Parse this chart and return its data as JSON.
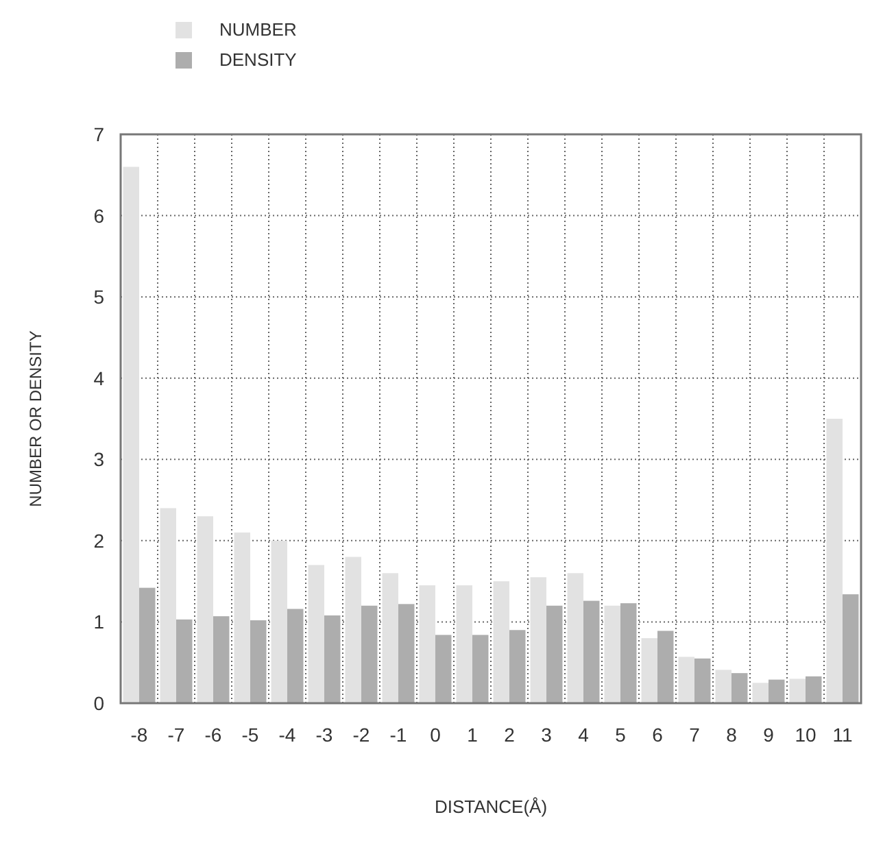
{
  "chart_data": {
    "type": "bar",
    "xlabel": "DISTANCE(Å)",
    "ylabel": "NUMBER OR DENSITY",
    "categories": [
      "-8",
      "-7",
      "-6",
      "-5",
      "-4",
      "-3",
      "-2",
      "-1",
      "0",
      "1",
      "2",
      "3",
      "4",
      "5",
      "6",
      "7",
      "8",
      "9",
      "10",
      "11"
    ],
    "series": [
      {
        "name": "NUMBER",
        "color": "#e2e2e2",
        "values": [
          6.6,
          2.4,
          2.3,
          2.1,
          2.0,
          1.7,
          1.8,
          1.6,
          1.45,
          1.45,
          1.5,
          1.55,
          1.6,
          1.2,
          0.8,
          0.57,
          0.41,
          0.25,
          0.3,
          3.5
        ]
      },
      {
        "name": "DENSITY",
        "color": "#adadad",
        "values": [
          1.42,
          1.03,
          1.07,
          1.02,
          1.16,
          1.08,
          1.2,
          1.22,
          0.84,
          0.84,
          0.9,
          1.2,
          1.26,
          1.23,
          0.89,
          0.55,
          0.37,
          0.29,
          0.33,
          1.34
        ]
      }
    ],
    "ylim": [
      0,
      7
    ],
    "yticks": [
      0,
      1,
      2,
      3,
      4,
      5,
      6,
      7
    ],
    "grid": true,
    "legend": "top left"
  }
}
